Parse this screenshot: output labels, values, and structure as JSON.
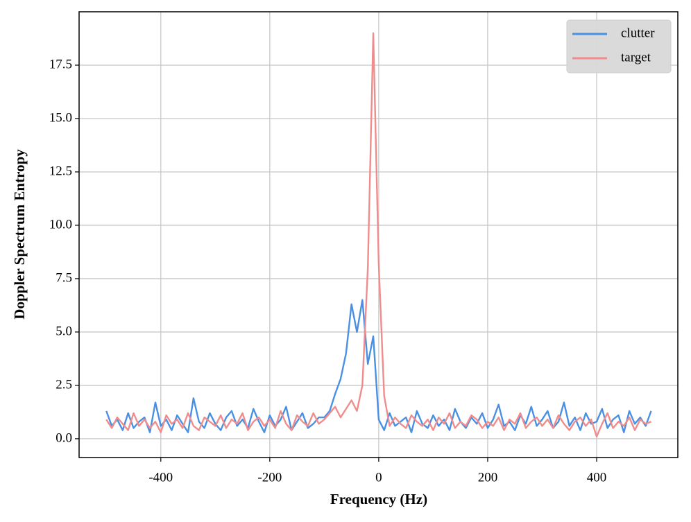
{
  "chart_data": {
    "type": "line",
    "xlabel": "Frequency (Hz)",
    "ylabel": "Doppler Spectrum Entropy",
    "x": [
      -500,
      -490,
      -480,
      -470,
      -460,
      -450,
      -440,
      -430,
      -420,
      -410,
      -400,
      -390,
      -380,
      -370,
      -360,
      -350,
      -340,
      -330,
      -320,
      -310,
      -300,
      -290,
      -280,
      -270,
      -260,
      -250,
      -240,
      -230,
      -220,
      -210,
      -200,
      -190,
      -180,
      -170,
      -160,
      -150,
      -140,
      -130,
      -120,
      -110,
      -100,
      -90,
      -80,
      -70,
      -60,
      -50,
      -40,
      -30,
      -20,
      -10,
      0,
      10,
      20,
      30,
      40,
      50,
      60,
      70,
      80,
      90,
      100,
      110,
      120,
      130,
      140,
      150,
      160,
      170,
      180,
      190,
      200,
      210,
      220,
      230,
      240,
      250,
      260,
      270,
      280,
      290,
      300,
      310,
      320,
      330,
      340,
      350,
      360,
      370,
      380,
      390,
      400,
      410,
      420,
      430,
      440,
      450,
      460,
      470,
      480,
      490,
      500
    ],
    "series": [
      {
        "name": "clutter",
        "color": "#4a90e2",
        "values": [
          1.3,
          0.6,
          0.9,
          0.4,
          1.2,
          0.5,
          0.8,
          1.0,
          0.3,
          1.7,
          0.6,
          0.9,
          0.4,
          1.1,
          0.7,
          0.3,
          1.9,
          0.8,
          0.5,
          1.2,
          0.7,
          0.4,
          1.0,
          1.3,
          0.6,
          0.9,
          0.5,
          1.4,
          0.8,
          0.3,
          1.1,
          0.6,
          0.9,
          1.5,
          0.4,
          0.8,
          1.2,
          0.5,
          0.7,
          1.0,
          1.0,
          1.3,
          2.1,
          2.8,
          4.0,
          6.3,
          5.0,
          6.5,
          3.5,
          4.8,
          0.9,
          0.4,
          1.2,
          0.6,
          0.8,
          1.0,
          0.3,
          1.3,
          0.7,
          0.5,
          1.1,
          0.6,
          0.9,
          0.4,
          1.4,
          0.8,
          0.5,
          1.0,
          0.7,
          1.2,
          0.5,
          0.9,
          1.6,
          0.6,
          0.8,
          0.4,
          1.1,
          0.7,
          1.5,
          0.6,
          0.9,
          1.3,
          0.5,
          0.8,
          1.7,
          0.6,
          1.0,
          0.4,
          1.2,
          0.7,
          0.8,
          1.4,
          0.5,
          0.9,
          1.1,
          0.3,
          1.3,
          0.7,
          1.0,
          0.6,
          1.3
        ]
      },
      {
        "name": "target",
        "color": "#f08c8c",
        "values": [
          0.9,
          0.5,
          1.0,
          0.7,
          0.4,
          1.2,
          0.6,
          0.9,
          0.5,
          0.8,
          0.3,
          1.1,
          0.7,
          0.9,
          0.5,
          1.2,
          0.6,
          0.4,
          1.0,
          0.8,
          0.6,
          1.1,
          0.5,
          0.9,
          0.7,
          1.2,
          0.4,
          0.8,
          1.0,
          0.6,
          0.9,
          0.5,
          1.3,
          0.7,
          0.4,
          1.1,
          0.8,
          0.6,
          1.2,
          0.7,
          0.9,
          1.2,
          1.5,
          1.0,
          1.4,
          1.8,
          1.3,
          2.5,
          8.0,
          19.0,
          8.2,
          2.0,
          0.6,
          1.0,
          0.7,
          0.5,
          1.1,
          0.8,
          0.6,
          0.9,
          0.4,
          1.0,
          0.7,
          1.2,
          0.5,
          0.8,
          0.6,
          1.1,
          0.9,
          0.5,
          0.8,
          0.6,
          1.0,
          0.4,
          0.9,
          0.7,
          1.2,
          0.5,
          0.8,
          1.0,
          0.6,
          0.9,
          0.5,
          1.1,
          0.7,
          0.4,
          0.8,
          1.0,
          0.6,
          0.9,
          0.1,
          0.7,
          1.2,
          0.5,
          0.8,
          0.6,
          1.0,
          0.4,
          0.9,
          0.7,
          0.8
        ]
      }
    ],
    "xlim": [
      -550,
      549
    ],
    "ylim": [
      -0.88,
      20.0
    ],
    "xticks": [
      -400,
      -200,
      0,
      200,
      400
    ],
    "yticks": [
      {
        "value": 0,
        "label": "0.0"
      },
      {
        "value": 2.5,
        "label": "2.5"
      },
      {
        "value": 5,
        "label": "5.0"
      },
      {
        "value": 7.5,
        "label": "7.5"
      },
      {
        "value": 10,
        "label": "10.0"
      },
      {
        "value": 12.5,
        "label": "12.5"
      },
      {
        "value": 15,
        "label": "15.0"
      },
      {
        "value": 17.5,
        "label": "17.5"
      }
    ],
    "grid": true,
    "legend": "upper right"
  }
}
